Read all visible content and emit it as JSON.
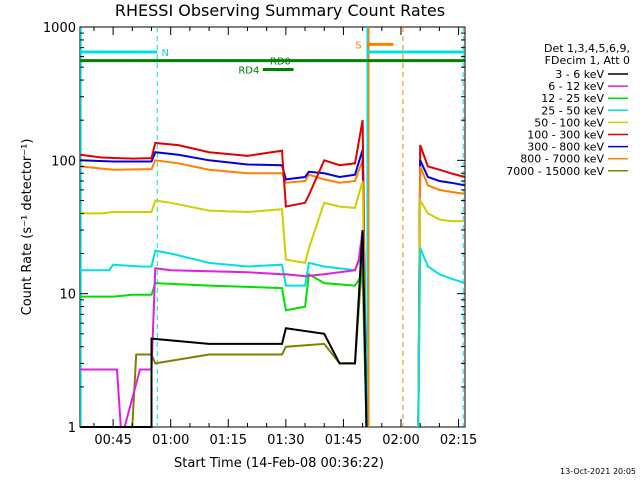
{
  "chart_data": {
    "type": "line",
    "title": "RHESSI Observing Summary Count Rates",
    "xlabel": "Start Time (14-Feb-08 00:36:22)",
    "ylabel": "Count Rate (s⁻¹ detector⁻¹)",
    "yscale": "log",
    "ylim": [
      1,
      1000
    ],
    "xlim_min": [
      36.37,
      136.67
    ],
    "x_ticks": [
      {
        "min": 45,
        "label": "00:45"
      },
      {
        "min": 60,
        "label": "01:00"
      },
      {
        "min": 75,
        "label": "01:15"
      },
      {
        "min": 90,
        "label": "01:30"
      },
      {
        "min": 105,
        "label": "01:45"
      },
      {
        "min": 120,
        "label": "02:00"
      },
      {
        "min": 135,
        "label": "02:15"
      }
    ],
    "y_ticks": [
      {
        "v": 1,
        "label": "1"
      },
      {
        "v": 10,
        "label": "10"
      },
      {
        "v": 100,
        "label": "100"
      },
      {
        "v": 1000,
        "label": "1000"
      }
    ],
    "legend_header": [
      "Det 1,3,4,5,6,9,",
      "FDecim 1, Att 0"
    ],
    "legend_position": "right",
    "series": [
      {
        "name": "3 - 6 keV",
        "color": "#000000",
        "points": [
          [
            36.4,
            1.0
          ],
          [
            55,
            1.0
          ],
          [
            55,
            4.6
          ],
          [
            70,
            4.2
          ],
          [
            89,
            4.2
          ],
          [
            90,
            5.5
          ],
          [
            100,
            5.0
          ],
          [
            104,
            3.0
          ],
          [
            108,
            3.0
          ],
          [
            110,
            30
          ],
          [
            111,
            1.0
          ]
        ]
      },
      {
        "name": "6 - 12 keV",
        "color": "#e020e0",
        "points": [
          [
            36.4,
            2.7
          ],
          [
            46,
            2.7
          ],
          [
            47,
            1.0
          ],
          [
            48,
            1.0
          ],
          [
            52,
            2.7
          ],
          [
            55,
            2.7
          ],
          [
            56,
            15.5
          ],
          [
            60,
            15
          ],
          [
            80,
            14.5
          ],
          [
            89,
            14
          ],
          [
            90,
            14
          ],
          [
            95,
            13.5
          ],
          [
            100,
            14
          ],
          [
            108,
            15
          ],
          [
            109,
            18
          ],
          [
            110,
            30
          ],
          [
            111,
            1.0
          ]
        ]
      },
      {
        "name": "12 - 25 keV",
        "color": "#00e000",
        "points": [
          [
            36.4,
            9.5
          ],
          [
            45,
            9.5
          ],
          [
            50,
            9.8
          ],
          [
            55,
            9.8
          ],
          [
            56,
            12
          ],
          [
            70,
            11.5
          ],
          [
            89,
            11
          ],
          [
            90,
            7.5
          ],
          [
            95,
            8
          ],
          [
            96,
            14
          ],
          [
            100,
            12
          ],
          [
            108,
            11.5
          ],
          [
            110,
            14
          ],
          [
            111,
            1.0
          ]
        ]
      },
      {
        "name": "25 - 50 keV",
        "color": "#00e0e0",
        "points": [
          [
            36.4,
            15
          ],
          [
            44,
            15
          ],
          [
            45,
            16.5
          ],
          [
            52,
            16
          ],
          [
            55,
            16
          ],
          [
            56,
            21
          ],
          [
            60,
            20
          ],
          [
            70,
            17
          ],
          [
            80,
            16
          ],
          [
            89,
            16.5
          ],
          [
            90,
            11.5
          ],
          [
            95,
            11.5
          ],
          [
            96,
            17
          ],
          [
            100,
            16
          ],
          [
            108,
            15
          ],
          [
            110,
            20
          ],
          [
            111,
            1.0
          ]
        ]
      },
      {
        "name": "50 - 100 keV",
        "color": "#d0d000",
        "points": [
          [
            36.4,
            40
          ],
          [
            42,
            40
          ],
          [
            45,
            41
          ],
          [
            55,
            41
          ],
          [
            56,
            50
          ],
          [
            60,
            48
          ],
          [
            70,
            42
          ],
          [
            80,
            41
          ],
          [
            89,
            43
          ],
          [
            90,
            18
          ],
          [
            95,
            17
          ],
          [
            96,
            22
          ],
          [
            100,
            48
          ],
          [
            104,
            45
          ],
          [
            108,
            44
          ],
          [
            110,
            70
          ],
          [
            111,
            1.0
          ]
        ]
      },
      {
        "name": "100 - 300 keV",
        "color": "#e00000",
        "points": [
          [
            36.4,
            110
          ],
          [
            42,
            105
          ],
          [
            50,
            103
          ],
          [
            55,
            104
          ],
          [
            56,
            135
          ],
          [
            62,
            130
          ],
          [
            70,
            115
          ],
          [
            80,
            108
          ],
          [
            89,
            118
          ],
          [
            90,
            45
          ],
          [
            95,
            48
          ],
          [
            96,
            55
          ],
          [
            100,
            100
          ],
          [
            104,
            92
          ],
          [
            108,
            95
          ],
          [
            110,
            200
          ],
          [
            111,
            1.0
          ]
        ]
      },
      {
        "name": "300 - 800 keV",
        "color": "#0000e0",
        "points": [
          [
            36.4,
            100
          ],
          [
            45,
            98
          ],
          [
            55,
            98
          ],
          [
            56,
            115
          ],
          [
            62,
            110
          ],
          [
            70,
            100
          ],
          [
            80,
            93
          ],
          [
            89,
            92
          ],
          [
            90,
            72
          ],
          [
            95,
            75
          ],
          [
            96,
            82
          ],
          [
            100,
            80
          ],
          [
            104,
            75
          ],
          [
            108,
            78
          ],
          [
            110,
            120
          ],
          [
            111,
            1.0
          ]
        ]
      },
      {
        "name": "800 - 7000 keV",
        "color": "#ff8000",
        "points": [
          [
            36.4,
            90
          ],
          [
            45,
            85
          ],
          [
            55,
            86
          ],
          [
            56,
            100
          ],
          [
            62,
            95
          ],
          [
            70,
            85
          ],
          [
            80,
            80
          ],
          [
            89,
            80
          ],
          [
            90,
            68
          ],
          [
            95,
            70
          ],
          [
            96,
            78
          ],
          [
            100,
            72
          ],
          [
            104,
            68
          ],
          [
            108,
            70
          ],
          [
            110,
            100
          ],
          [
            111,
            1.0
          ]
        ]
      },
      {
        "name": "7000 - 15000 keV",
        "color": "#808000",
        "points": [
          [
            36.4,
            1.0
          ],
          [
            50,
            1.0
          ],
          [
            51,
            3.5
          ],
          [
            55,
            3.5
          ],
          [
            56,
            3.0
          ],
          [
            70,
            3.5
          ],
          [
            89,
            3.5
          ],
          [
            90,
            4.0
          ],
          [
            100,
            4.2
          ],
          [
            104,
            3.0
          ],
          [
            108,
            3.0
          ],
          [
            110,
            20
          ],
          [
            111,
            1.0
          ]
        ]
      }
    ],
    "series_after_gap": [
      {
        "color": "#e00000",
        "points": [
          [
            124.5,
            1.0
          ],
          [
            125,
            130
          ],
          [
            127,
            90
          ],
          [
            130,
            85
          ],
          [
            133,
            80
          ],
          [
            136.6,
            75
          ]
        ]
      },
      {
        "color": "#0000e0",
        "points": [
          [
            124.5,
            1.0
          ],
          [
            125,
            100
          ],
          [
            127,
            75
          ],
          [
            130,
            70
          ],
          [
            133,
            68
          ],
          [
            136.6,
            65
          ]
        ]
      },
      {
        "color": "#ff8000",
        "points": [
          [
            124.5,
            1.0
          ],
          [
            125,
            90
          ],
          [
            127,
            65
          ],
          [
            130,
            60
          ],
          [
            133,
            58
          ],
          [
            136.6,
            56
          ]
        ]
      },
      {
        "color": "#d0d000",
        "points": [
          [
            124.5,
            1.0
          ],
          [
            125,
            50
          ],
          [
            127,
            40
          ],
          [
            130,
            36
          ],
          [
            133,
            35
          ],
          [
            136.6,
            35
          ]
        ]
      },
      {
        "color": "#00e0e0",
        "points": [
          [
            124.5,
            1.0
          ],
          [
            125,
            22
          ],
          [
            127,
            16
          ],
          [
            130,
            14
          ],
          [
            133,
            13
          ],
          [
            136.6,
            12
          ]
        ]
      }
    ],
    "annotations": {
      "flags": [
        {
          "label": "N",
          "color": "#00e0e0",
          "x_start": 36.4,
          "x_end": 56.5,
          "y": 650
        },
        {
          "label": "N",
          "color": "#00e0e0",
          "x_start": 111,
          "x_end": 136.6,
          "y": 650,
          "label_hidden": true
        },
        {
          "label": "RD0",
          "color": "#008000",
          "x_start": 36.4,
          "x_end": 136.6,
          "y": 560
        },
        {
          "label": "RD4",
          "color": "#008000",
          "x_start": 84,
          "x_end": 92,
          "y": 480
        },
        {
          "label": "S",
          "color": "#ff8000",
          "x_start": 111,
          "x_end": 118,
          "y": 740
        }
      ],
      "cyan_dashed_lines": [
        56.5,
        136.2
      ],
      "orange_dashed_lines": [
        120.5
      ],
      "cyan_solid_lines": [
        36.6,
        111.2
      ],
      "orange_solid_lines": [
        111.6
      ]
    },
    "footer_date": "13-Oct-2021 20:05",
    "grid": false
  }
}
